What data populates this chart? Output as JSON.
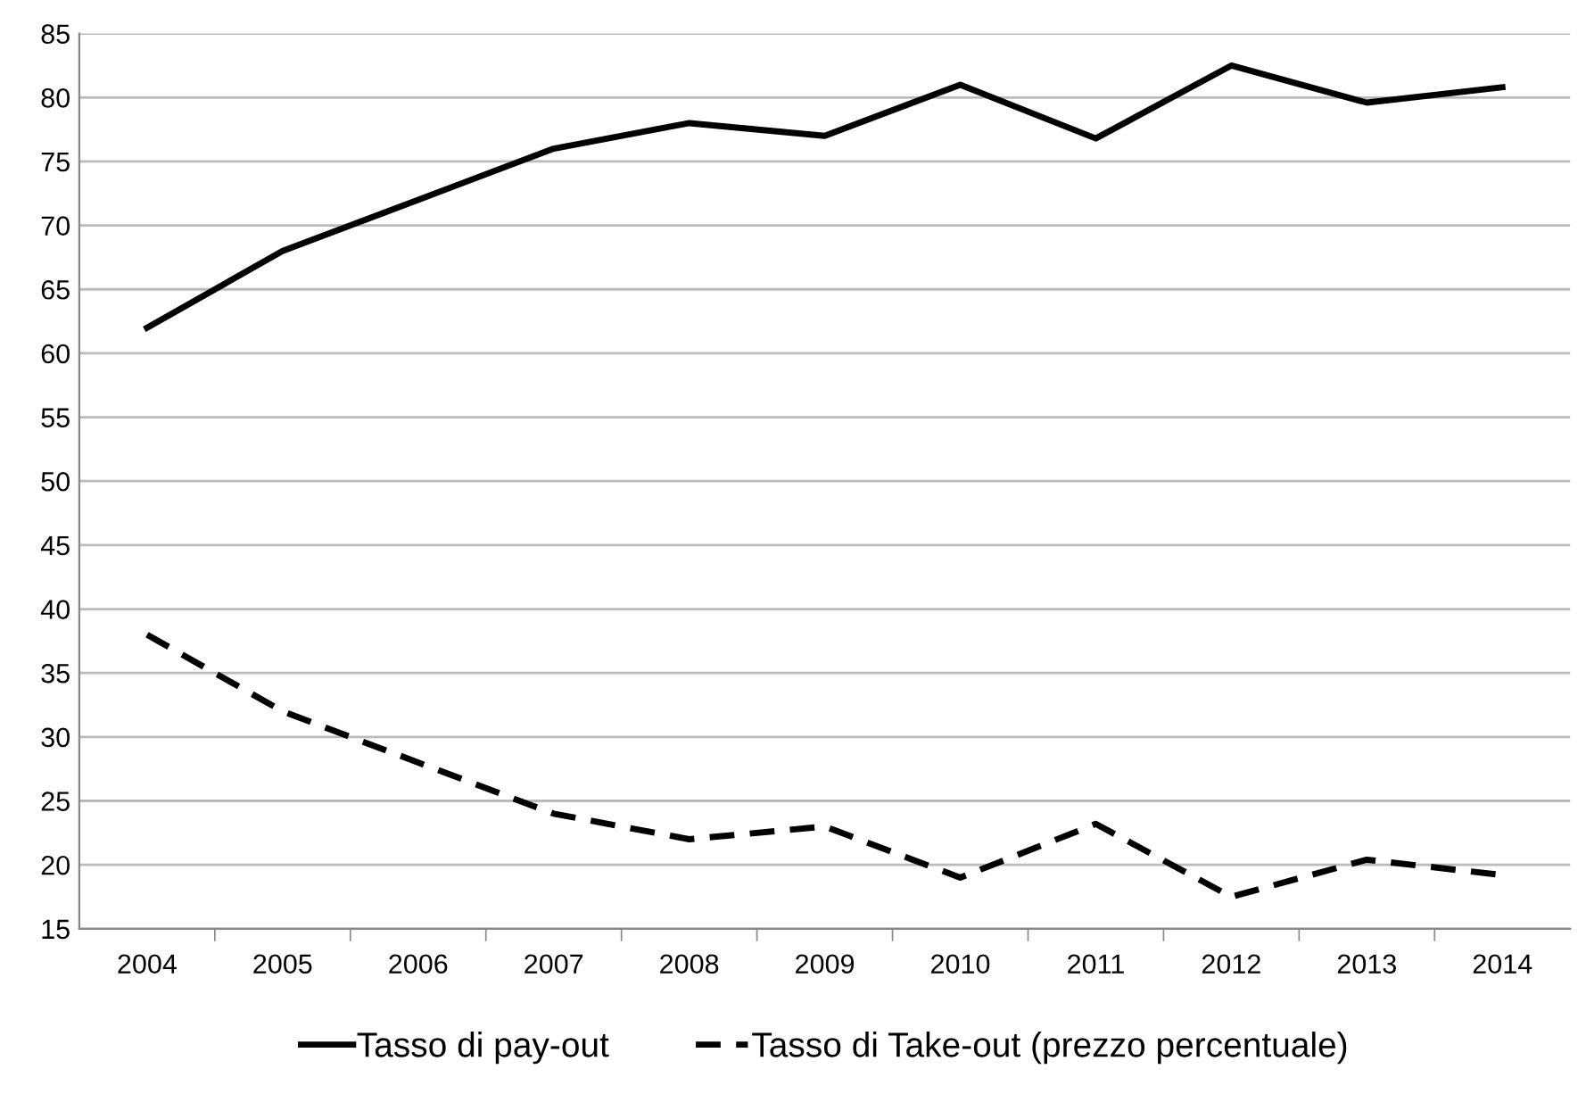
{
  "chart_data": {
    "type": "line",
    "categories": [
      "2004",
      "2005",
      "2006",
      "2007",
      "2008",
      "2009",
      "2010",
      "2011",
      "2012",
      "2013",
      "2014"
    ],
    "series": [
      {
        "name": "Tasso di pay-out",
        "color": "#000000",
        "line_style": "solid",
        "values": [
          62,
          68,
          72,
          76,
          78,
          77,
          81,
          76.8,
          82.5,
          79.6,
          80.8
        ]
      },
      {
        "name": "Tasso di Take-out (prezzo percentuale)",
        "color": "#000000",
        "line_style": "dashed",
        "values": [
          38,
          32,
          28,
          24,
          22,
          23,
          19,
          23.2,
          17.5,
          20.4,
          19.2
        ]
      }
    ],
    "ylim": [
      15,
      85
    ],
    "yticks": [
      15,
      20,
      25,
      30,
      35,
      40,
      45,
      50,
      55,
      60,
      65,
      70,
      75,
      80,
      85
    ],
    "grid": "y",
    "legend": "bottom",
    "marker": "none"
  }
}
